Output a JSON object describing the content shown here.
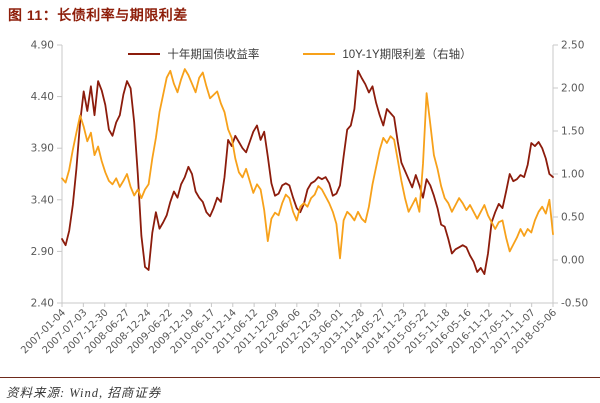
{
  "title": "图 11：长债利率与期限利差",
  "legend": {
    "items": [
      {
        "label": "十年期国债收益率",
        "color": "#8c1c0c"
      },
      {
        "label": "10Y-1Y期限利差（右轴）",
        "color": "#f7a11a"
      }
    ]
  },
  "footer": {
    "source": "资料来源: Wind, 招商证券"
  },
  "colors": {
    "title": "#8e1e0a",
    "axis_line": "#c8c8c8",
    "axis_text": "#595959",
    "series_yield": "#8c1c0c",
    "series_spread": "#f7a11a"
  },
  "chart_data": {
    "type": "line",
    "title": "长债利率与期限利差",
    "frequency": "monthly",
    "x_start": "2007-01",
    "x_end": "2018-05",
    "x_tick_labels": [
      "2007-01-04",
      "2007-07-03",
      "2007-12-30",
      "2008-06-27",
      "2008-12-24",
      "2009-06-22",
      "2009-12-19",
      "2010-06-17",
      "2010-12-14",
      "2011-06-12",
      "2011-12-09",
      "2012-06-06",
      "2012-12-03",
      "2013-06-01",
      "2013-11-28",
      "2014-05-27",
      "2014-11-23",
      "2015-05-22",
      "2015-11-18",
      "2016-05-16",
      "2016-11-12",
      "2017-05-11",
      "2017-11-07",
      "2018-05-06"
    ],
    "left_axis": {
      "min": 2.4,
      "max": 4.9,
      "tick_labels": [
        "4.90",
        "4.40",
        "3.90",
        "3.40",
        "2.90",
        "2.40"
      ]
    },
    "right_axis": {
      "min": -0.5,
      "max": 2.5,
      "tick_labels": [
        "2.50",
        "2.00",
        "1.50",
        "1.00",
        "0.50",
        "0.00",
        "-0.50"
      ]
    },
    "legend_position": "top",
    "grid": false,
    "series": [
      {
        "name": "十年期国债收益率",
        "axis": "left",
        "color": "#8c1c0c",
        "values": [
          3.02,
          2.96,
          3.1,
          3.35,
          3.7,
          4.15,
          4.45,
          4.26,
          4.5,
          4.22,
          4.55,
          4.46,
          4.32,
          4.08,
          4.02,
          4.15,
          4.22,
          4.42,
          4.55,
          4.48,
          4.15,
          3.65,
          3.05,
          2.75,
          2.72,
          3.08,
          3.28,
          3.12,
          3.18,
          3.25,
          3.38,
          3.48,
          3.42,
          3.55,
          3.62,
          3.72,
          3.65,
          3.48,
          3.42,
          3.38,
          3.28,
          3.24,
          3.32,
          3.42,
          3.38,
          3.62,
          3.98,
          3.92,
          4.02,
          3.96,
          3.9,
          3.86,
          3.96,
          4.06,
          4.12,
          3.98,
          4.06,
          3.82,
          3.56,
          3.44,
          3.46,
          3.54,
          3.56,
          3.54,
          3.42,
          3.32,
          3.28,
          3.36,
          3.5,
          3.56,
          3.58,
          3.62,
          3.6,
          3.62,
          3.56,
          3.44,
          3.46,
          3.54,
          3.82,
          4.08,
          4.12,
          4.28,
          4.65,
          4.58,
          4.52,
          4.44,
          4.5,
          4.34,
          4.22,
          4.12,
          4.28,
          4.24,
          4.2,
          3.96,
          3.76,
          3.68,
          3.6,
          3.52,
          3.64,
          3.54,
          3.42,
          3.6,
          3.54,
          3.44,
          3.32,
          3.16,
          3.14,
          3.02,
          2.88,
          2.92,
          2.94,
          2.96,
          2.94,
          2.86,
          2.8,
          2.7,
          2.74,
          2.68,
          2.88,
          3.18,
          3.28,
          3.36,
          3.32,
          3.48,
          3.65,
          3.58,
          3.6,
          3.64,
          3.62,
          3.74,
          3.95,
          3.92,
          3.96,
          3.9,
          3.8,
          3.65,
          3.62
        ]
      },
      {
        "name": "10Y-1Y期限利差（右轴）",
        "axis": "right",
        "color": "#f7a11a",
        "values": [
          0.95,
          0.9,
          1.05,
          1.28,
          1.48,
          1.68,
          1.55,
          1.38,
          1.48,
          1.22,
          1.32,
          1.15,
          1.02,
          0.92,
          0.88,
          0.95,
          0.85,
          0.92,
          1.0,
          0.85,
          0.75,
          0.82,
          0.72,
          0.82,
          0.88,
          1.18,
          1.42,
          1.72,
          1.92,
          2.12,
          2.2,
          2.05,
          1.95,
          2.1,
          2.22,
          2.15,
          2.05,
          1.95,
          2.12,
          2.18,
          2.02,
          1.88,
          1.92,
          1.96,
          1.82,
          1.72,
          1.52,
          1.42,
          1.18,
          1.02,
          0.96,
          1.06,
          0.92,
          0.78,
          0.88,
          0.82,
          0.58,
          0.22,
          0.48,
          0.55,
          0.52,
          0.66,
          0.76,
          0.72,
          0.56,
          0.46,
          0.62,
          0.66,
          0.62,
          0.72,
          0.76,
          0.86,
          0.82,
          0.74,
          0.66,
          0.56,
          0.42,
          0.02,
          0.46,
          0.56,
          0.52,
          0.46,
          0.56,
          0.48,
          0.44,
          0.62,
          0.88,
          1.08,
          1.28,
          1.42,
          1.36,
          1.44,
          1.4,
          1.16,
          0.92,
          0.72,
          0.56,
          0.64,
          0.72,
          0.56,
          1.12,
          1.94,
          1.58,
          1.22,
          1.06,
          0.86,
          0.72,
          0.66,
          0.56,
          0.64,
          0.72,
          0.66,
          0.58,
          0.64,
          0.56,
          0.48,
          0.56,
          0.64,
          0.52,
          0.44,
          0.36,
          0.44,
          0.46,
          0.26,
          0.1,
          0.18,
          0.26,
          0.36,
          0.28,
          0.36,
          0.32,
          0.46,
          0.56,
          0.62,
          0.54,
          0.7,
          0.3
        ]
      }
    ]
  }
}
